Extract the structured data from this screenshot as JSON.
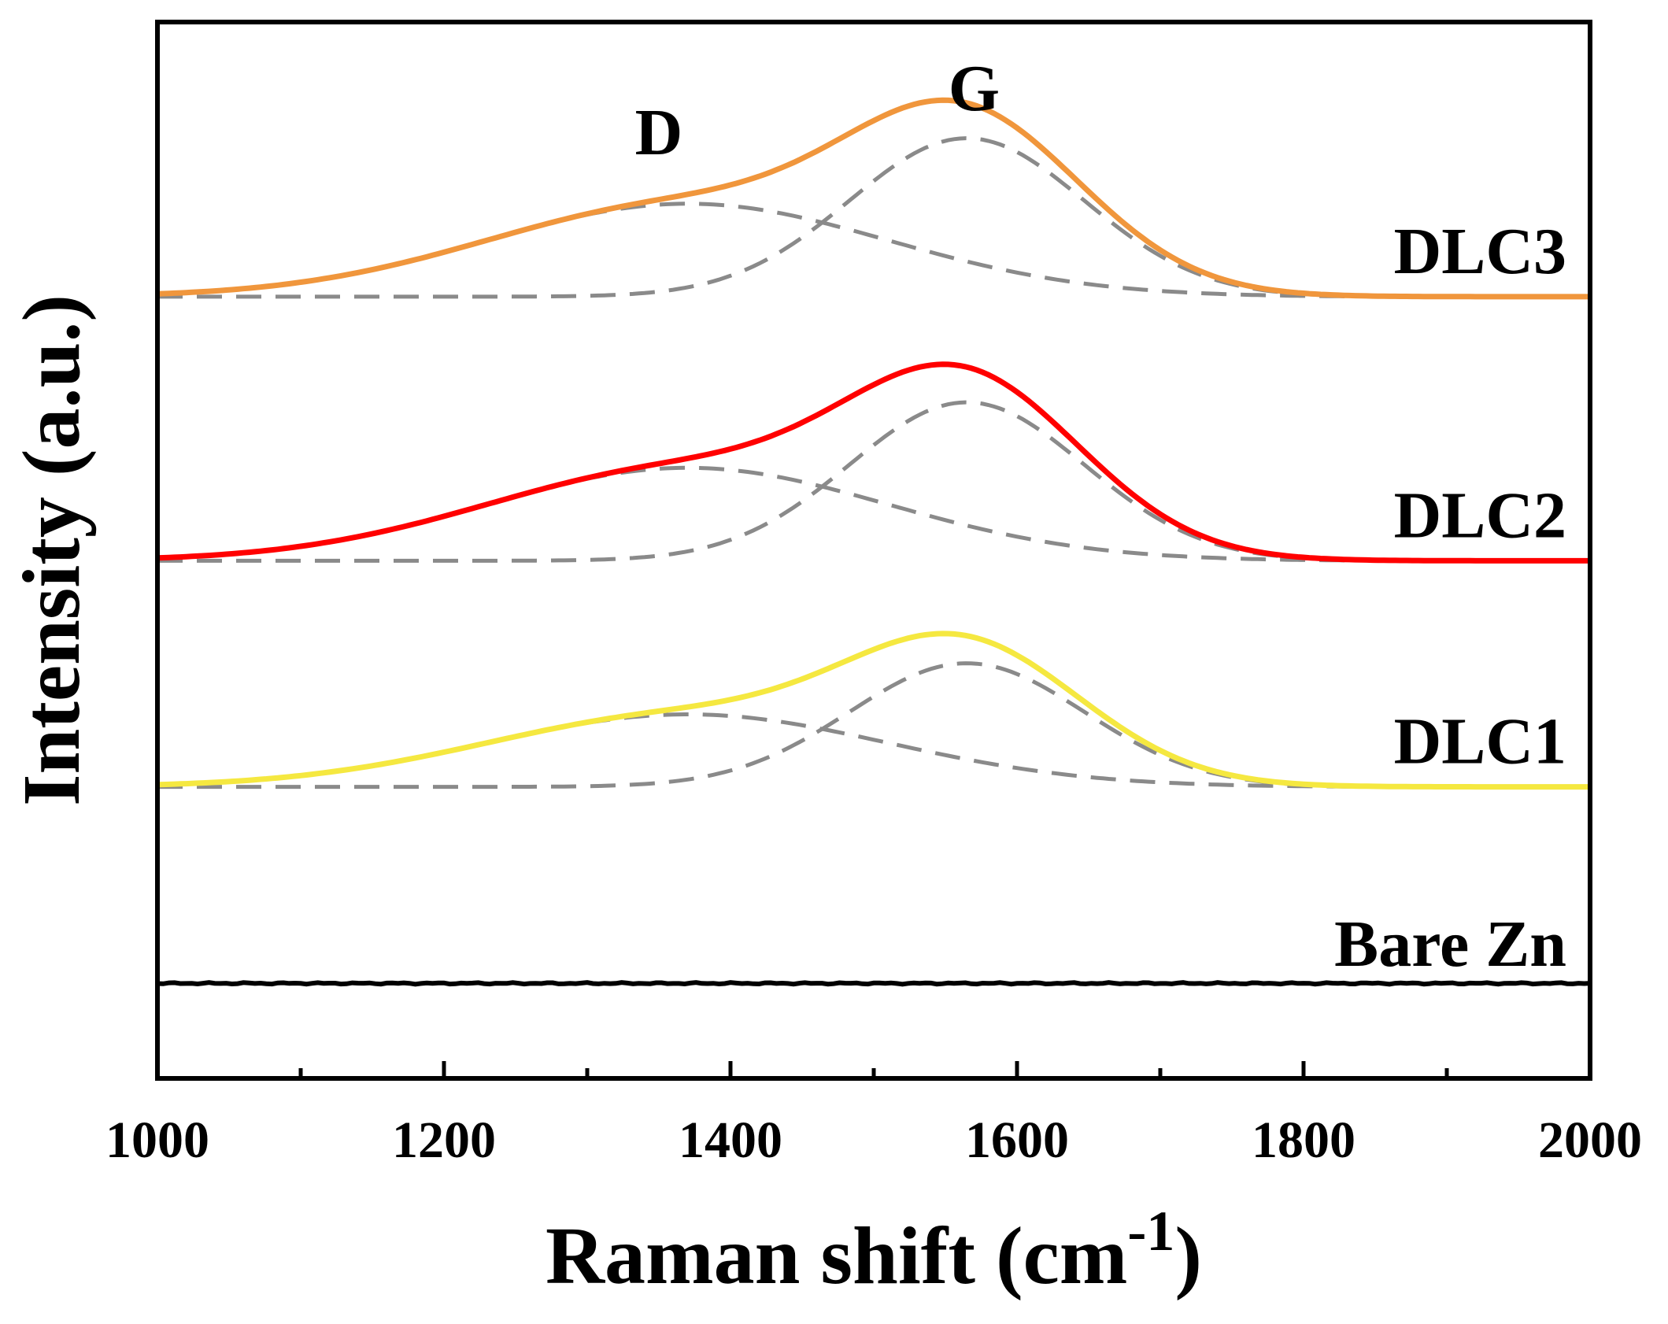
{
  "chart_data": {
    "type": "line",
    "title": "",
    "xlabel": "Raman shift (cm",
    "xlabel_superscript": "-1",
    "xlabel_close": ")",
    "ylabel": "Intensity (a.u.)",
    "xlim": [
      1000,
      2000
    ],
    "x_ticks": [
      1000,
      1200,
      1400,
      1600,
      1800,
      2000
    ],
    "x_tick_labels": [
      "1000",
      "1200",
      "1400",
      "1600",
      "1800",
      "2000"
    ],
    "y_ticks_shown": false,
    "grid": false,
    "legend": "none",
    "peak_labels": [
      {
        "text": "D",
        "x": 1350
      },
      {
        "text": "G",
        "x": 1570
      }
    ],
    "series": [
      {
        "name": "DLC3",
        "color": "#f0963c",
        "offset": 3.25,
        "scale": 1.0,
        "fit_components": [
          {
            "peak": "D",
            "center": 1370,
            "width": 140,
            "amplitude": 0.44
          },
          {
            "peak": "G",
            "center": 1565,
            "width": 82,
            "amplitude": 0.75
          }
        ]
      },
      {
        "name": "DLC2",
        "color": "#ff0000",
        "offset": 2.0,
        "scale": 1.0,
        "fit_components": [
          {
            "peak": "D",
            "center": 1370,
            "width": 140,
            "amplitude": 0.44
          },
          {
            "peak": "G",
            "center": 1565,
            "width": 82,
            "amplitude": 0.75
          }
        ]
      },
      {
        "name": "DLC1",
        "color": "#f5e840",
        "offset": 0.93,
        "scale": 0.78,
        "fit_components": [
          {
            "peak": "D",
            "center": 1370,
            "width": 140,
            "amplitude": 0.44
          },
          {
            "peak": "G",
            "center": 1565,
            "width": 82,
            "amplitude": 0.75
          }
        ]
      },
      {
        "name": "Bare Zn",
        "color": "#000000",
        "offset": 0.0,
        "scale": 0.0,
        "fit_components": []
      }
    ],
    "ylim": [
      -0.45,
      4.55
    ],
    "fit_line_color": "#8a8a8a"
  }
}
